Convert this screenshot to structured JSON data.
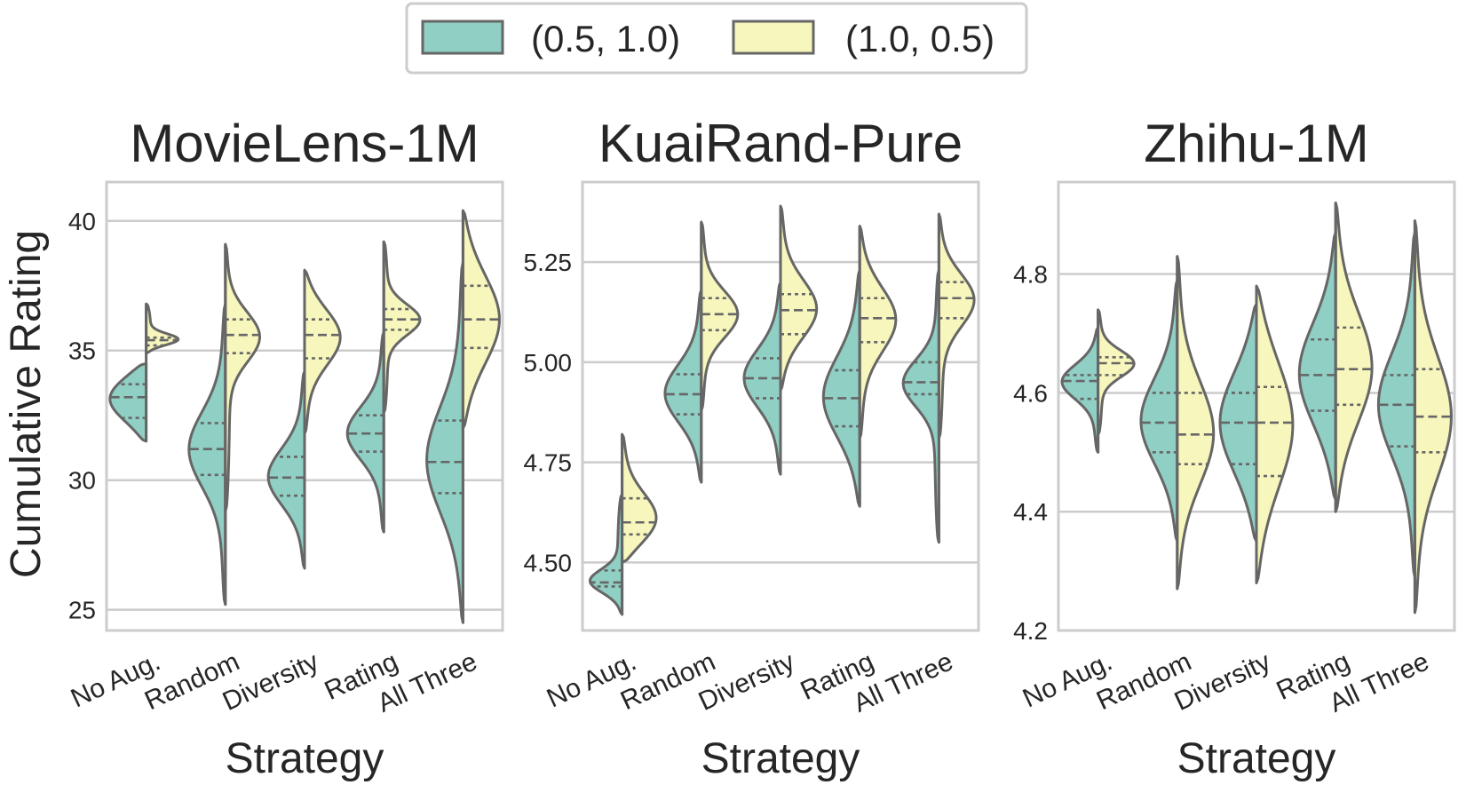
{
  "legend": {
    "items": [
      {
        "label": "(0.5, 1.0)",
        "color": "#8fcfc4"
      },
      {
        "label": "(1.0, 0.5)",
        "color": "#f7f6bd"
      }
    ]
  },
  "colors": {
    "outline": "#666666",
    "grid": "#cccccc",
    "frame": "#cccccc",
    "text": "#262626"
  },
  "y_axis_label": "Cumulative Rating",
  "chart_data": [
    {
      "type": "violin",
      "title": "MovieLens-1M",
      "xlabel": "Strategy",
      "ylabel": "Cumulative Rating",
      "categories": [
        "No Aug.",
        "Random",
        "Diversity",
        "Rating",
        "All Three"
      ],
      "ylim": [
        24.2,
        41.5
      ],
      "yticks": [
        25,
        30,
        35,
        40
      ],
      "yticklabels": [
        "25",
        "30",
        "35",
        "40"
      ],
      "series": [
        {
          "name": "(0.5, 1.0)",
          "min": [
            31.5,
            25.2,
            26.6,
            28.0,
            24.5
          ],
          "max": [
            34.5,
            36.8,
            34.2,
            35.7,
            38.4
          ],
          "q1": [
            32.4,
            30.2,
            29.4,
            31.1,
            29.5
          ],
          "median": [
            33.2,
            31.2,
            30.1,
            31.8,
            30.7
          ],
          "q3": [
            33.7,
            32.2,
            30.9,
            32.5,
            32.3
          ]
        },
        {
          "name": "(1.0, 0.5)",
          "min": [
            34.9,
            28.8,
            31.8,
            32.6,
            32.0
          ],
          "max": [
            36.8,
            39.1,
            38.1,
            39.2,
            40.4
          ],
          "q1": [
            35.2,
            34.9,
            34.7,
            35.8,
            35.1
          ],
          "median": [
            35.4,
            35.6,
            35.6,
            36.2,
            36.2
          ],
          "q3": [
            35.5,
            36.2,
            36.2,
            36.6,
            37.5
          ]
        }
      ]
    },
    {
      "type": "violin",
      "title": "KuaiRand-Pure",
      "xlabel": "Strategy",
      "ylabel": "",
      "categories": [
        "No Aug.",
        "Random",
        "Diversity",
        "Rating",
        "All Three"
      ],
      "ylim": [
        4.33,
        5.45
      ],
      "yticks": [
        4.5,
        4.75,
        5.0,
        5.25
      ],
      "yticklabels": [
        "4.50",
        "4.75",
        "5.00",
        "5.25"
      ],
      "series": [
        {
          "name": "(0.5, 1.0)",
          "min": [
            4.37,
            4.7,
            4.72,
            4.64,
            4.55
          ],
          "max": [
            4.67,
            5.18,
            5.2,
            5.23,
            5.23
          ],
          "q1": [
            4.44,
            4.87,
            4.91,
            4.84,
            4.92
          ],
          "median": [
            4.45,
            4.92,
            4.96,
            4.91,
            4.95
          ],
          "q3": [
            4.48,
            4.97,
            5.01,
            4.98,
            5.0
          ]
        },
        {
          "name": "(1.0, 0.5)",
          "min": [
            4.5,
            4.88,
            4.93,
            4.81,
            4.81
          ],
          "max": [
            4.82,
            5.35,
            5.39,
            5.34,
            5.37
          ],
          "q1": [
            4.57,
            5.08,
            5.07,
            5.05,
            5.11
          ],
          "median": [
            4.6,
            5.12,
            5.13,
            5.11,
            5.16
          ],
          "q3": [
            4.66,
            5.16,
            5.17,
            5.16,
            5.2
          ]
        }
      ]
    },
    {
      "type": "violin",
      "title": "Zhihu-1M",
      "xlabel": "Strategy",
      "ylabel": "",
      "categories": [
        "No Aug.",
        "Random",
        "Diversity",
        "Rating",
        "All Three"
      ],
      "ylim": [
        4.2,
        4.955
      ],
      "yticks": [
        4.2,
        4.4,
        4.6,
        4.8
      ],
      "yticklabels": [
        "4.2",
        "4.4",
        "4.6",
        "4.8"
      ],
      "series": [
        {
          "name": "(0.5, 1.0)",
          "min": [
            4.5,
            4.35,
            4.35,
            4.42,
            4.29
          ],
          "max": [
            4.71,
            4.79,
            4.75,
            4.87,
            4.87
          ],
          "q1": [
            4.59,
            4.5,
            4.48,
            4.57,
            4.51
          ],
          "median": [
            4.62,
            4.55,
            4.55,
            4.63,
            4.58
          ],
          "q3": [
            4.63,
            4.6,
            4.6,
            4.69,
            4.63
          ]
        },
        {
          "name": "(1.0, 0.5)",
          "min": [
            4.53,
            4.27,
            4.28,
            4.4,
            4.23
          ],
          "max": [
            4.74,
            4.83,
            4.78,
            4.92,
            4.89
          ],
          "q1": [
            4.63,
            4.48,
            4.46,
            4.58,
            4.5
          ],
          "median": [
            4.65,
            4.53,
            4.55,
            4.64,
            4.56
          ],
          "q3": [
            4.66,
            4.6,
            4.61,
            4.71,
            4.64
          ]
        }
      ]
    }
  ]
}
